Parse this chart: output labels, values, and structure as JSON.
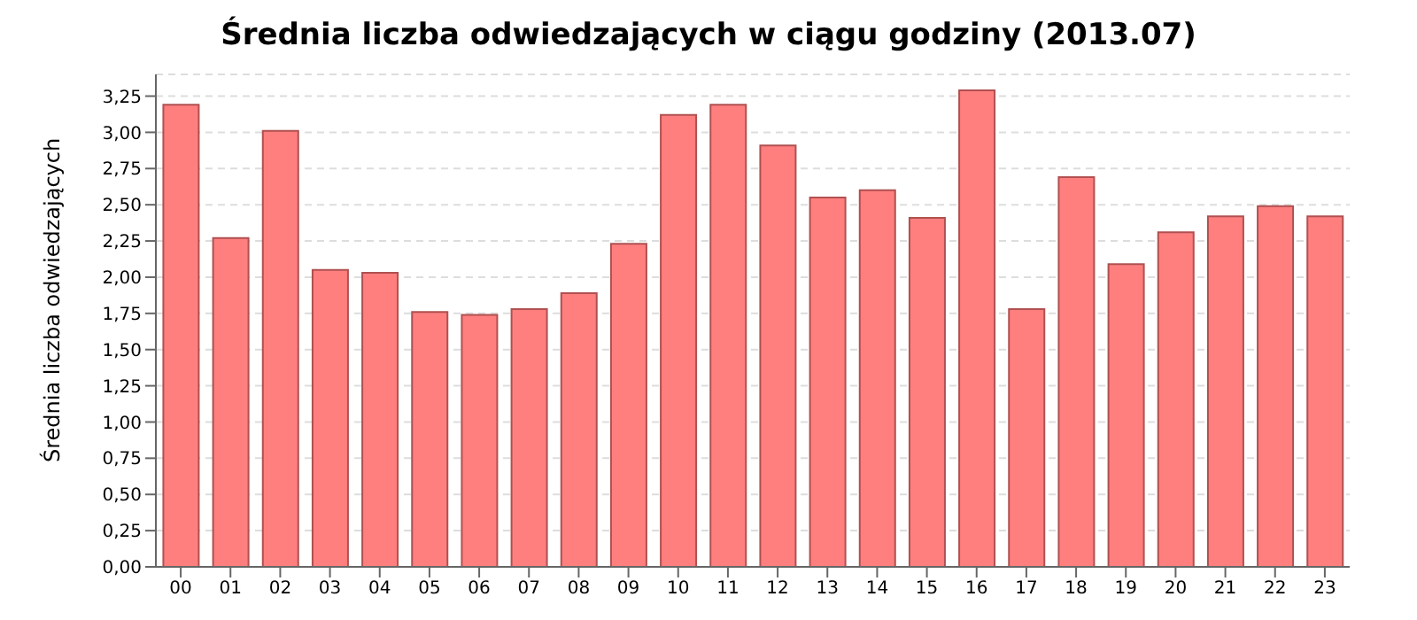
{
  "chart_data": {
    "type": "bar",
    "title": "Średnia liczba odwiedzających w ciągu godziny (2013.07)",
    "ylabel": "Średnia liczba odwiedzających",
    "categories": [
      "00",
      "01",
      "02",
      "03",
      "04",
      "05",
      "06",
      "07",
      "08",
      "09",
      "10",
      "11",
      "12",
      "13",
      "14",
      "15",
      "16",
      "17",
      "18",
      "19",
      "20",
      "21",
      "22",
      "23"
    ],
    "values": [
      3.19,
      2.27,
      3.01,
      2.05,
      2.03,
      1.76,
      1.74,
      1.78,
      1.89,
      2.23,
      3.12,
      3.19,
      2.91,
      2.55,
      2.6,
      2.41,
      3.29,
      1.78,
      2.69,
      2.09,
      2.31,
      2.42,
      2.49,
      2.42
    ],
    "color": "#ff7f7f",
    "ylim": [
      0,
      3.4
    ],
    "yticks": [
      {
        "value": 0,
        "label": "0,00"
      },
      {
        "value": 0.25,
        "label": "0,25"
      },
      {
        "value": 0.5,
        "label": "0,50"
      },
      {
        "value": 0.75,
        "label": "0,75"
      },
      {
        "value": 1,
        "label": "1,00"
      },
      {
        "value": 1.25,
        "label": "1,25"
      },
      {
        "value": 1.5,
        "label": "1,50"
      },
      {
        "value": 1.75,
        "label": "1,75"
      },
      {
        "value": 2,
        "label": "2,00"
      },
      {
        "value": 2.25,
        "label": "2,25"
      },
      {
        "value": 2.5,
        "label": "2,50"
      },
      {
        "value": 2.75,
        "label": "2,75"
      },
      {
        "value": 3,
        "label": "3,00"
      },
      {
        "value": 3.25,
        "label": "3,25"
      }
    ],
    "grid": "y"
  }
}
